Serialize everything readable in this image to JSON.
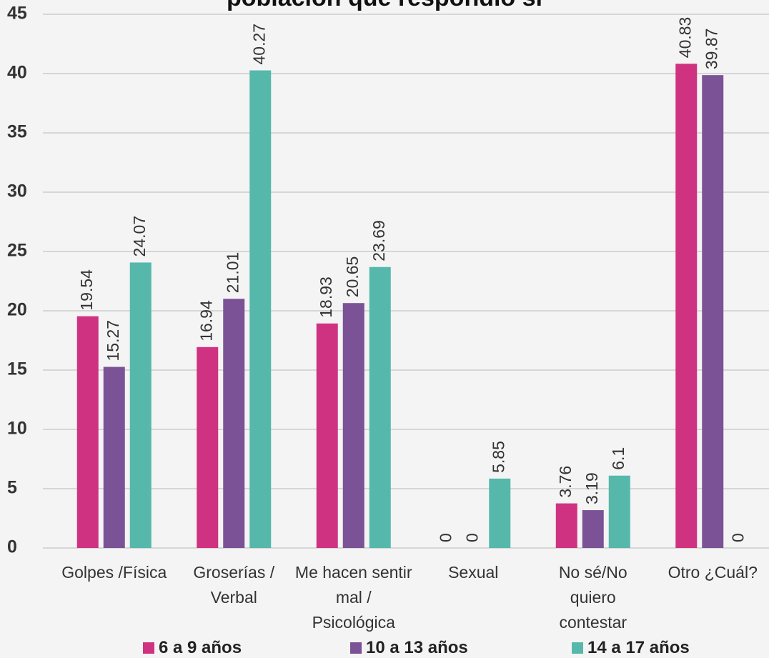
{
  "chart_data": {
    "type": "bar",
    "title": "población que respondió sí",
    "categories": [
      "Golpes /Física",
      "Groserías / Verbal",
      "Me hacen sentir mal / Psicológica",
      "Sexual",
      "No sé/No quiero contestar",
      "Otro ¿Cuál?"
    ],
    "series": [
      {
        "name": "6 a 9 años",
        "color": "#d03282",
        "values": [
          19.54,
          16.94,
          18.93,
          0,
          3.76,
          40.83
        ]
      },
      {
        "name": "10 a 13 años",
        "color": "#7b5295",
        "values": [
          15.27,
          21.01,
          20.65,
          0,
          3.19,
          39.87
        ]
      },
      {
        "name": "14 a 17 años",
        "color": "#55b8ab",
        "values": [
          24.07,
          40.27,
          23.69,
          5.85,
          6.1,
          0
        ]
      }
    ],
    "ylim": [
      0,
      45
    ],
    "yticks": [
      0,
      5,
      10,
      15,
      20,
      25,
      30,
      35,
      40,
      45
    ],
    "grid": true
  }
}
